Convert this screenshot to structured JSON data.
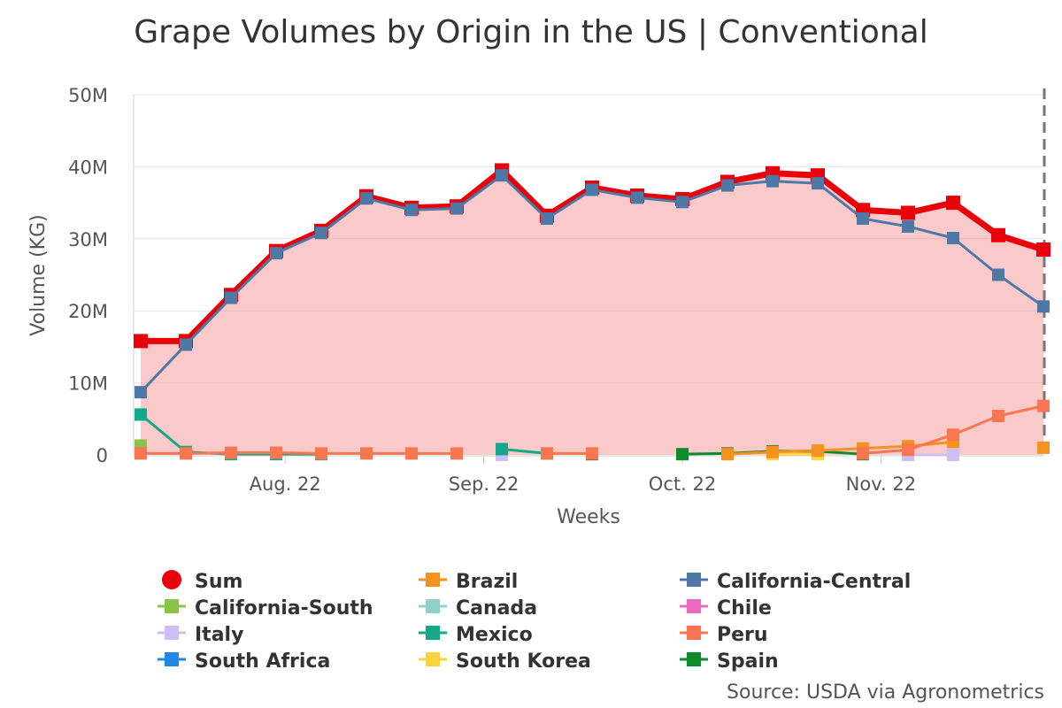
{
  "chart_data": {
    "type": "line",
    "title": "Grape Volumes by Origin in the US | Conventional",
    "xlabel": "Weeks",
    "ylabel": "Volume (KG)",
    "ylim": [
      0,
      50000000
    ],
    "yticks": [
      0,
      10000000,
      20000000,
      30000000,
      40000000,
      50000000
    ],
    "ytick_labels": [
      "0",
      "10M",
      "20M",
      "30M",
      "40M",
      "50M"
    ],
    "x_count": 21,
    "xticks": [
      {
        "label": "Aug. 22",
        "at": 3.2
      },
      {
        "label": "Sep. 22",
        "at": 7.6
      },
      {
        "label": "Oct. 22",
        "at": 12.0
      },
      {
        "label": "Nov. 22",
        "at": 16.4
      }
    ],
    "grid": true,
    "legend_position": "bottom",
    "series": [
      {
        "name": "Sum",
        "color": "#e8000b",
        "marker": "circle",
        "values": [
          15.8,
          15.8,
          22.2,
          28.3,
          31.1,
          35.9,
          34.3,
          34.5,
          39.5,
          33.2,
          37.1,
          36.0,
          35.5,
          37.9,
          39.1,
          38.8,
          34.0,
          33.6,
          35.0,
          30.5,
          28.5
        ]
      },
      {
        "name": "Brazil",
        "color": "#f5921e",
        "marker": "square",
        "values": [
          null,
          null,
          null,
          null,
          null,
          null,
          null,
          null,
          null,
          null,
          null,
          null,
          null,
          0.1,
          0.4,
          0.6,
          0.9,
          1.2,
          1.8,
          null,
          1.0
        ]
      },
      {
        "name": "California-Central",
        "color": "#4e79a7",
        "marker": "square",
        "values": [
          8.7,
          15.3,
          21.8,
          28.0,
          30.8,
          35.6,
          34.0,
          34.2,
          38.8,
          32.8,
          36.8,
          35.7,
          35.1,
          37.4,
          38.0,
          37.7,
          32.8,
          31.7,
          30.1,
          25.0,
          20.6
        ]
      },
      {
        "name": "California-South",
        "color": "#8bc34a",
        "marker": "square",
        "values": [
          1.3,
          null,
          null,
          null,
          null,
          null,
          null,
          null,
          null,
          null,
          null,
          null,
          null,
          null,
          null,
          null,
          null,
          null,
          null,
          null,
          null
        ]
      },
      {
        "name": "Canada",
        "color": "#8ed1c6",
        "marker": "square",
        "values": [
          null,
          null,
          null,
          null,
          null,
          null,
          null,
          null,
          null,
          null,
          null,
          null,
          null,
          null,
          null,
          null,
          null,
          null,
          null,
          null,
          null
        ]
      },
      {
        "name": "Chile",
        "color": "#ee69c0",
        "marker": "square",
        "values": [
          null,
          null,
          null,
          null,
          null,
          null,
          null,
          null,
          null,
          null,
          null,
          null,
          null,
          null,
          null,
          null,
          null,
          null,
          null,
          null,
          null
        ]
      },
      {
        "name": "Italy",
        "color": "#cdbff5",
        "marker": "square",
        "values": [
          null,
          null,
          null,
          null,
          null,
          null,
          null,
          null,
          0.0,
          null,
          null,
          null,
          null,
          null,
          null,
          null,
          null,
          0.0,
          0.0,
          null,
          null
        ]
      },
      {
        "name": "Mexico",
        "color": "#14a88a",
        "marker": "square",
        "values": [
          5.6,
          0.4,
          0.1,
          0.1,
          0.1,
          null,
          null,
          null,
          0.8,
          0.2,
          null,
          null,
          null,
          null,
          null,
          null,
          null,
          null,
          null,
          null,
          null
        ]
      },
      {
        "name": "Peru",
        "color": "#fa7650",
        "marker": "square",
        "values": [
          0.2,
          0.2,
          0.3,
          0.3,
          0.2,
          0.2,
          0.2,
          0.2,
          null,
          0.2,
          0.2,
          null,
          null,
          null,
          null,
          null,
          0.2,
          0.7,
          2.8,
          5.4,
          6.8
        ]
      },
      {
        "name": "South Africa",
        "color": "#1f88e5",
        "marker": "square",
        "values": [
          null,
          null,
          null,
          null,
          null,
          null,
          null,
          null,
          null,
          null,
          null,
          null,
          null,
          null,
          null,
          null,
          null,
          null,
          null,
          null,
          null
        ]
      },
      {
        "name": "South Korea",
        "color": "#fdd23c",
        "marker": "square",
        "values": [
          null,
          null,
          null,
          null,
          null,
          null,
          null,
          null,
          null,
          null,
          null,
          null,
          null,
          null,
          0.1,
          0.1,
          null,
          null,
          null,
          null,
          null
        ]
      },
      {
        "name": "Spain",
        "color": "#0d8a2b",
        "marker": "square",
        "values": [
          null,
          null,
          null,
          null,
          null,
          null,
          null,
          null,
          null,
          null,
          0.1,
          null,
          0.1,
          0.2,
          0.5,
          0.5,
          0.1,
          null,
          null,
          null,
          null
        ]
      }
    ],
    "value_unit": "millions of KG",
    "source": "Source: USDA via Agronometrics"
  }
}
